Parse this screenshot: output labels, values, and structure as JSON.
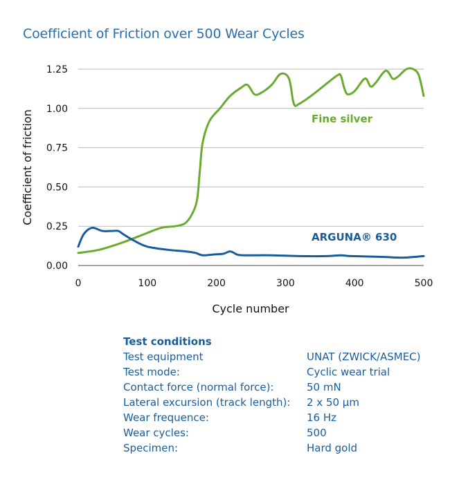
{
  "chart_data": {
    "type": "line",
    "title": "Coefficient of Friction over 500 Wear Cycles",
    "xlabel": "Cycle number",
    "ylabel": "Coefficient of friction",
    "xlim": [
      0,
      500
    ],
    "ylim": [
      0,
      1.25
    ],
    "xticks": [
      "0",
      "100",
      "200",
      "300",
      "400",
      "500"
    ],
    "yticks": [
      "0.00",
      "0.25",
      "0.50",
      "0.75",
      "1.00",
      "1.25"
    ],
    "grid": "horizontal",
    "series": [
      {
        "name": "Fine silver",
        "color": "#6aaa2f",
        "points": [
          [
            0,
            0.08
          ],
          [
            30,
            0.1
          ],
          [
            60,
            0.14
          ],
          [
            90,
            0.19
          ],
          [
            120,
            0.24
          ],
          [
            140,
            0.25
          ],
          [
            155,
            0.27
          ],
          [
            165,
            0.33
          ],
          [
            172,
            0.42
          ],
          [
            176,
            0.6
          ],
          [
            180,
            0.78
          ],
          [
            190,
            0.92
          ],
          [
            205,
            1.0
          ],
          [
            220,
            1.08
          ],
          [
            235,
            1.13
          ],
          [
            245,
            1.15
          ],
          [
            255,
            1.09
          ],
          [
            265,
            1.1
          ],
          [
            280,
            1.15
          ],
          [
            293,
            1.22
          ],
          [
            305,
            1.19
          ],
          [
            312,
            1.03
          ],
          [
            320,
            1.03
          ],
          [
            340,
            1.09
          ],
          [
            360,
            1.16
          ],
          [
            375,
            1.21
          ],
          [
            380,
            1.21
          ],
          [
            385,
            1.13
          ],
          [
            390,
            1.09
          ],
          [
            400,
            1.11
          ],
          [
            415,
            1.19
          ],
          [
            423,
            1.14
          ],
          [
            430,
            1.16
          ],
          [
            445,
            1.24
          ],
          [
            455,
            1.19
          ],
          [
            462,
            1.2
          ],
          [
            475,
            1.25
          ],
          [
            485,
            1.25
          ],
          [
            493,
            1.21
          ],
          [
            500,
            1.08
          ]
        ]
      },
      {
        "name": "ARGUNA® 630",
        "color": "#1a5c9b",
        "points": [
          [
            0,
            0.12
          ],
          [
            8,
            0.2
          ],
          [
            20,
            0.24
          ],
          [
            35,
            0.22
          ],
          [
            50,
            0.22
          ],
          [
            58,
            0.22
          ],
          [
            65,
            0.2
          ],
          [
            80,
            0.16
          ],
          [
            100,
            0.12
          ],
          [
            130,
            0.1
          ],
          [
            155,
            0.09
          ],
          [
            170,
            0.08
          ],
          [
            180,
            0.065
          ],
          [
            195,
            0.07
          ],
          [
            210,
            0.075
          ],
          [
            220,
            0.09
          ],
          [
            230,
            0.07
          ],
          [
            240,
            0.065
          ],
          [
            280,
            0.065
          ],
          [
            320,
            0.06
          ],
          [
            360,
            0.06
          ],
          [
            380,
            0.065
          ],
          [
            395,
            0.06
          ],
          [
            440,
            0.055
          ],
          [
            470,
            0.05
          ],
          [
            500,
            0.06
          ]
        ]
      }
    ]
  },
  "test_conditions": {
    "heading": "Test conditions",
    "rows": [
      {
        "label": "Test equipment",
        "value": "UNAT (ZWICK/ASMEC)"
      },
      {
        "label": "Test mode:",
        "value": "Cyclic wear trial"
      },
      {
        "label": "Contact force (normal force):",
        "value": "50 mN"
      },
      {
        "label": "Lateral excursion (track length):",
        "value": "2 x 50 µm"
      },
      {
        "label": "Wear frequence:",
        "value": "16 Hz"
      },
      {
        "label": "Wear cycles:",
        "value": "500"
      },
      {
        "label": "Specimen:",
        "value": "Hard gold"
      }
    ]
  }
}
